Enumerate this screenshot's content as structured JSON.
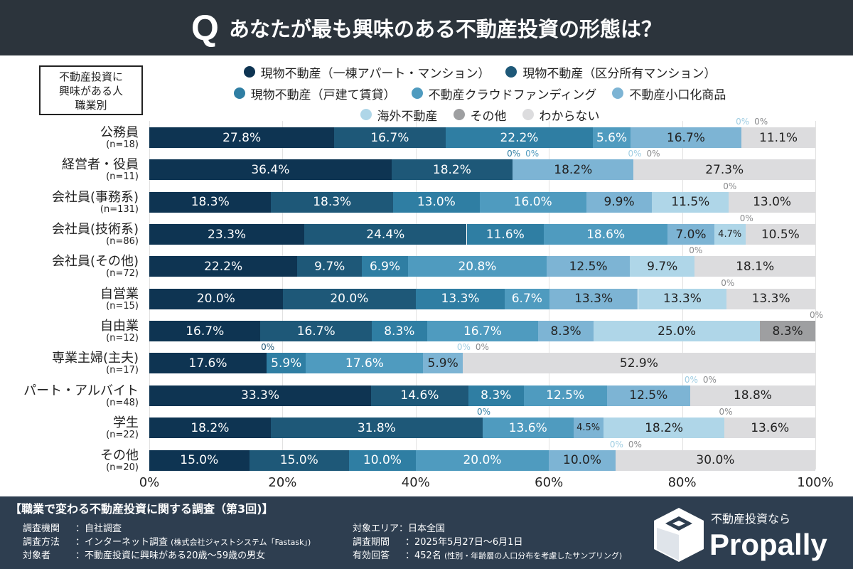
{
  "title": {
    "q": "Q",
    "text": "あなたが最も興味のある不動産投資の形態は？"
  },
  "category_box": [
    "不動産投資に",
    "興味がある人",
    "職業別"
  ],
  "chart_data": {
    "type": "stacked-bar-horizontal",
    "title": "あなたが最も興味のある不動産投資の形態は？",
    "xlim": [
      0,
      100
    ],
    "xticks": [
      "0%",
      "20%",
      "40%",
      "60%",
      "80%",
      "100%"
    ],
    "grid": true,
    "legend_position": "top",
    "series": [
      {
        "name": "現物不動産（一棟アパート・マンション）",
        "color": "#0e3452",
        "values": [
          27.8,
          36.4,
          18.3,
          23.3,
          22.2,
          20.0,
          16.7,
          17.6,
          33.3,
          18.2,
          15.0
        ]
      },
      {
        "name": "現物不動産（区分所有マンション）",
        "color": "#1e5878",
        "values": [
          16.7,
          18.2,
          18.3,
          24.4,
          9.7,
          20.0,
          16.7,
          0,
          14.6,
          31.8,
          15.0
        ]
      },
      {
        "name": "現物不動産（戸建て賃貸）",
        "color": "#2f7ea3",
        "values": [
          22.2,
          0,
          13.0,
          11.6,
          6.9,
          13.3,
          8.3,
          5.9,
          8.3,
          0,
          10.0
        ]
      },
      {
        "name": "不動産クラウドファンディング",
        "color": "#4f9bbf",
        "values": [
          5.6,
          0,
          16.0,
          18.6,
          20.8,
          6.7,
          16.7,
          17.6,
          12.5,
          13.6,
          20.0
        ]
      },
      {
        "name": "不動産小口化商品",
        "color": "#7db4d4",
        "values": [
          16.7,
          18.2,
          9.9,
          7.0,
          12.5,
          13.3,
          8.3,
          5.9,
          12.5,
          4.5,
          10.0
        ]
      },
      {
        "name": "海外不動産",
        "color": "#afd6e8",
        "values": [
          0,
          0,
          11.5,
          4.7,
          9.7,
          13.3,
          25.0,
          0,
          0,
          18.2,
          0
        ]
      },
      {
        "name": "その他",
        "color": "#9e9fa1",
        "values": [
          0,
          0,
          0,
          0,
          0,
          0,
          8.3,
          0,
          0,
          0,
          0
        ]
      },
      {
        "name": "わからない",
        "color": "#dcdcde",
        "values": [
          11.1,
          27.3,
          13.0,
          10.5,
          18.1,
          13.3,
          0,
          52.9,
          18.8,
          13.6,
          30.0
        ]
      }
    ],
    "categories": [
      {
        "label": "公務員",
        "n": "(n=18)"
      },
      {
        "label": "経営者・役員",
        "n": "(n=11)"
      },
      {
        "label": "会社員(事務系)",
        "n": "(n=131)"
      },
      {
        "label": "会社員(技術系)",
        "n": "(n=86)"
      },
      {
        "label": "会社員(その他)",
        "n": "(n=72)"
      },
      {
        "label": "自営業",
        "n": "(n=15)"
      },
      {
        "label": "自由業",
        "n": "(n=12)"
      },
      {
        "label": "専業主婦(主夫)",
        "n": "(n=17)"
      },
      {
        "label": "パート・アルバイト",
        "n": "(n=48)"
      },
      {
        "label": "学生",
        "n": "(n=22)"
      },
      {
        "label": "その他",
        "n": "(n=20)"
      }
    ]
  },
  "footer": {
    "title": "【職業で変わる不動産投資に関する調査（第3回)】",
    "rows": [
      {
        "k": "調査機関",
        "v": "：自社調査"
      },
      {
        "k": "調査方法",
        "v": "：インターネット調査",
        "note": "(株式会社ジャストシステム「Fastask」)"
      },
      {
        "k": "対象者",
        "v": "：不動産投資に興味がある20歳～59歳の男女"
      },
      {
        "k": "対象エリア",
        "v": "：日本全国"
      },
      {
        "k": "調査期間",
        "v": "：2025年5月27日～6月1日"
      },
      {
        "k": "有効回答",
        "v": "：452名",
        "note": "(性別・年齢層の人口分布を考慮したサンプリング)"
      }
    ],
    "brand_sub": "不動産投資なら",
    "brand": "Propally"
  }
}
